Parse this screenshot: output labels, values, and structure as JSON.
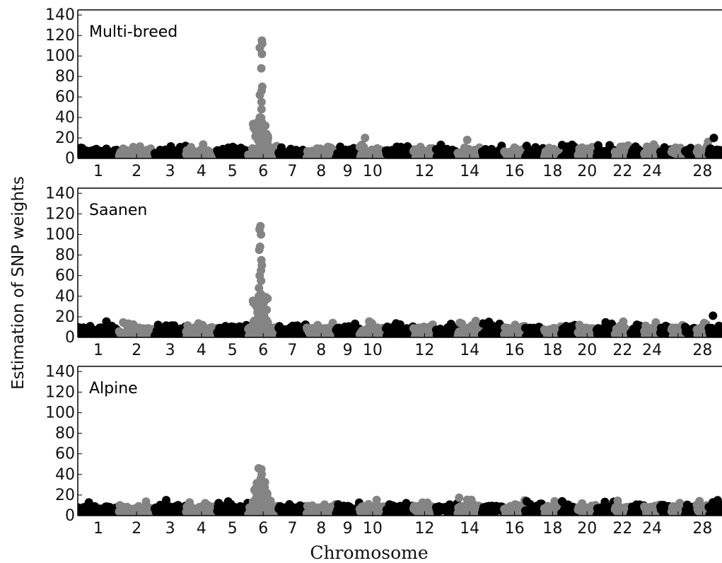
{
  "chart_data": {
    "type": "scatter",
    "ylabel": "Estimation of SNP weights",
    "xlabel": "Chromosome",
    "ylim": [
      0,
      145
    ],
    "yticks": [
      0,
      20,
      40,
      60,
      80,
      100,
      120,
      140
    ],
    "grid": false,
    "legend": "none",
    "chromosomes": [
      {
        "chr": 1,
        "label": "1",
        "length": 158
      },
      {
        "chr": 2,
        "label": "2",
        "length": 137
      },
      {
        "chr": 3,
        "label": "3",
        "length": 121
      },
      {
        "chr": 4,
        "label": "4",
        "length": 120
      },
      {
        "chr": 5,
        "label": "5",
        "length": 119
      },
      {
        "chr": 6,
        "label": "6",
        "length": 117
      },
      {
        "chr": 7,
        "label": "7",
        "length": 108
      },
      {
        "chr": 8,
        "label": "8",
        "length": 113
      },
      {
        "chr": 9,
        "label": "9",
        "length": 91
      },
      {
        "chr": 10,
        "label": "10",
        "length": 101
      },
      {
        "chr": 11,
        "label": "",
        "length": 106
      },
      {
        "chr": 12,
        "label": "12",
        "length": 87
      },
      {
        "chr": 13,
        "label": "",
        "length": 83
      },
      {
        "chr": 14,
        "label": "14",
        "length": 94
      },
      {
        "chr": 15,
        "label": "",
        "length": 85
      },
      {
        "chr": 16,
        "label": "16",
        "length": 81
      },
      {
        "chr": 17,
        "label": "",
        "length": 73
      },
      {
        "chr": 18,
        "label": "18",
        "length": 66
      },
      {
        "chr": 19,
        "label": "",
        "length": 64
      },
      {
        "chr": 20,
        "label": "20",
        "length": 72
      },
      {
        "chr": 21,
        "label": "",
        "length": 70
      },
      {
        "chr": 22,
        "label": "22",
        "length": 61
      },
      {
        "chr": 23,
        "label": "",
        "length": 52
      },
      {
        "chr": 24,
        "label": "24",
        "length": 62
      },
      {
        "chr": 25,
        "label": "",
        "length": 43
      },
      {
        "chr": 26,
        "label": "",
        "length": 52
      },
      {
        "chr": 27,
        "label": "",
        "length": 45
      },
      {
        "chr": 28,
        "label": "28",
        "length": 46
      },
      {
        "chr": 29,
        "label": "",
        "length": 52
      }
    ],
    "colors": {
      "odd": "#000000",
      "even": "#848484"
    },
    "panels": [
      {
        "title": "Multi-breed",
        "baseline": 7,
        "peaks": [
          {
            "chr": 6,
            "pos": 0.42,
            "values": [
              115,
              112,
              108,
              102,
              88,
              70,
              66,
              62,
              55,
              48,
              40,
              35,
              30,
              27,
              24,
              22,
              20,
              18
            ]
          },
          {
            "chr": 10,
            "pos": 0.2,
            "values": [
              20
            ]
          },
          {
            "chr": 14,
            "pos": 0.45,
            "values": [
              18
            ]
          },
          {
            "chr": 29,
            "pos": 0.5,
            "values": [
              20
            ]
          }
        ]
      },
      {
        "title": "Saanen",
        "baseline": 8,
        "peaks": [
          {
            "chr": 6,
            "pos": 0.4,
            "values": [
              108,
              105,
              100,
              88,
              85,
              75,
              70,
              65,
              60,
              55,
              48,
              42,
              40,
              36,
              32,
              30,
              27,
              24,
              21,
              19
            ]
          },
          {
            "chr": 14,
            "pos": 0.7,
            "values": [
              16
            ]
          },
          {
            "chr": 29,
            "pos": 0.3,
            "values": [
              21
            ]
          }
        ]
      },
      {
        "title": "Alpine",
        "baseline": 8,
        "peaks": [
          {
            "chr": 6,
            "pos": 0.4,
            "values": [
              46,
              45,
              40,
              36,
              30,
              26,
              24,
              22,
              20,
              18
            ]
          },
          {
            "chr": 29,
            "pos": 0.55,
            "values": [
              15
            ]
          }
        ]
      }
    ]
  }
}
